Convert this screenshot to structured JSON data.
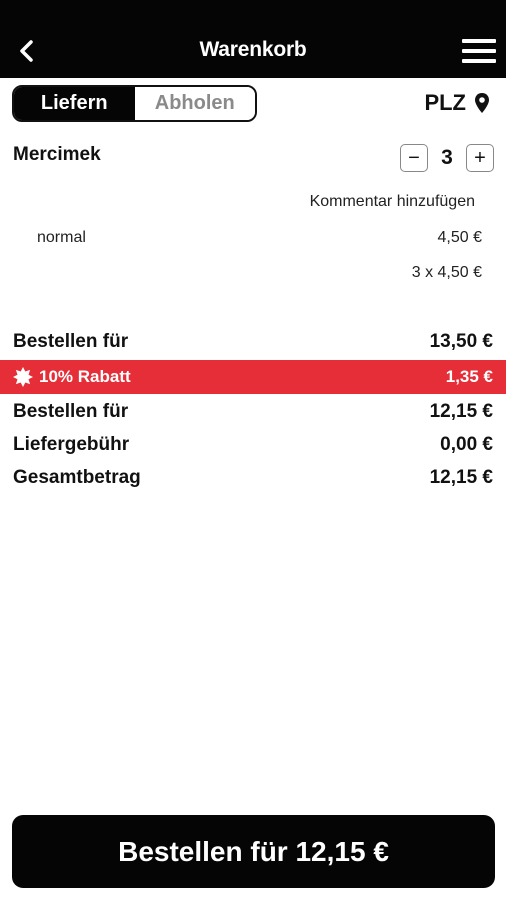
{
  "header": {
    "title": "Warenkorb",
    "back_icon": "chevron-left-icon",
    "menu_icon": "hamburger-menu-icon"
  },
  "mode_toggle": {
    "options": [
      "Liefern",
      "Abholen"
    ],
    "selected": "Liefern"
  },
  "location": {
    "label": "PLZ",
    "icon": "map-pin-icon"
  },
  "cart_item": {
    "name": "Mercimek",
    "quantity": "3",
    "decrement_symbol": "−",
    "increment_symbol": "+",
    "comment_link": "Kommentar hinzufügen",
    "variant": "normal",
    "unit_price": "4,50 €",
    "calculation": "3 x 4,50 €"
  },
  "summary": {
    "subtotal_label": "Bestellen für",
    "subtotal_value": "13,50 €",
    "discount_label": "10% Rabatt",
    "discount_value": "1,35 €",
    "discount_color": "#e52e38",
    "after_discount_label": "Bestellen für",
    "after_discount_value": "12,15 €",
    "delivery_label": "Liefergebühr",
    "delivery_value": "0,00 €",
    "total_label": "Gesamtbetrag",
    "total_value": "12,15 €"
  },
  "order_button": {
    "label": "Bestellen für 12,15 €"
  }
}
